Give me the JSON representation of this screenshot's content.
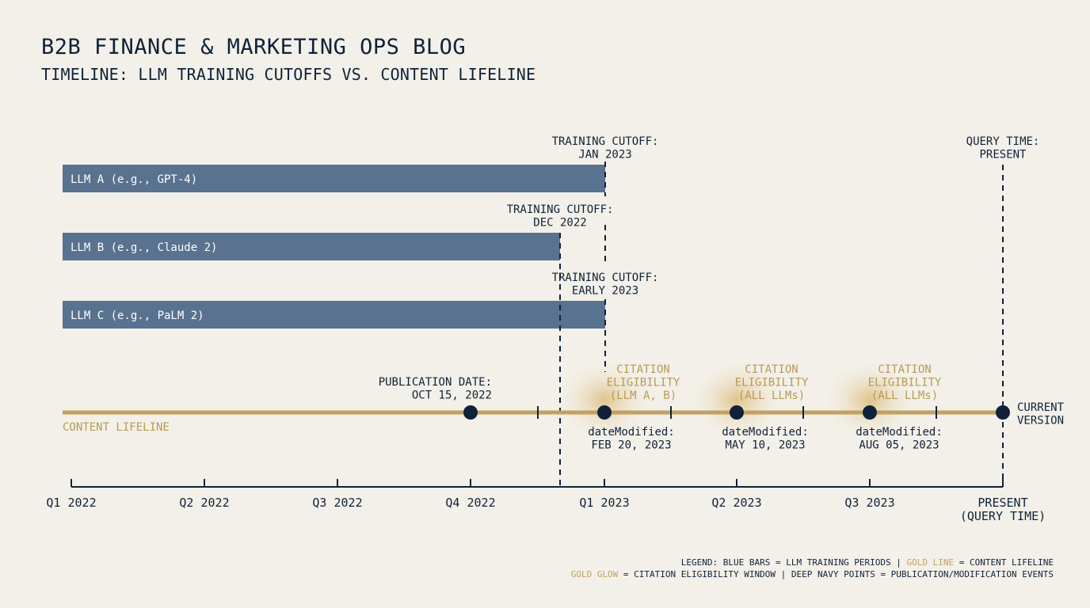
{
  "header": {
    "title": "B2B FINANCE & MARKETING OPS BLOG",
    "subtitle": "TIMELINE: LLM TRAINING CUTOFFS VS. CONTENT LIFELINE"
  },
  "colors": {
    "background": "#f3f0e9",
    "bar": "#58728f",
    "navy": "#0f2238",
    "gold": "#c2a160",
    "gold_text": "#b89a56"
  },
  "bars": [
    {
      "label": "LLM A (e.g., GPT-4)",
      "cutoff_lines": [
        "TRAINING CUTOFF:",
        "JAN 2023"
      ]
    },
    {
      "label": "LLM B (e.g., Claude 2)",
      "cutoff_lines": [
        "TRAINING CUTOFF:",
        "DEC 2022"
      ]
    },
    {
      "label": "LLM C (e.g., PaLM 2)",
      "cutoff_lines": [
        "TRAINING CUTOFF:",
        "EARLY 2023"
      ]
    }
  ],
  "query_time": [
    "QUERY TIME:",
    "PRESENT"
  ],
  "lifeline_label": "CONTENT LIFELINE",
  "publication": [
    "PUBLICATION DATE:",
    "OCT 15, 2022"
  ],
  "current_version": [
    "CURRENT",
    "VERSION"
  ],
  "eligibility": [
    [
      "CITATION",
      "ELIGIBILITY",
      "(LLM A, B)"
    ],
    [
      "CITATION",
      "ELIGIBILITY",
      "(ALL LLMs)"
    ],
    [
      "CITATION",
      "ELIGIBILITY",
      "(ALL LLMs)"
    ]
  ],
  "modifications": [
    [
      "dateModified:",
      "FEB 20, 2023"
    ],
    [
      "dateModified:",
      "MAY 10, 2023"
    ],
    [
      "dateModified:",
      "AUG 05, 2023"
    ]
  ],
  "axis_ticks": [
    [
      "Q1 2022"
    ],
    [
      "Q2 2022"
    ],
    [
      "Q3 2022"
    ],
    [
      "Q4 2022"
    ],
    [
      "Q1 2023"
    ],
    [
      "Q2 2023"
    ],
    [
      "Q3 2023"
    ],
    [
      "PRESENT",
      "(QUERY TIME)"
    ]
  ],
  "legend": {
    "line1_a": "LEGEND: BLUE BARS = LLM TRAINING PERIODS | ",
    "line1_gold": "GOLD LINE",
    "line1_b": " = CONTENT LIFELINE",
    "line2_gold": "GOLD GLOW",
    "line2_b": " = CITATION ELIGIBILITY WINDOW | DEEP NAVY POINTS = PUBLICATION/MODIFICATION EVENTS"
  }
}
